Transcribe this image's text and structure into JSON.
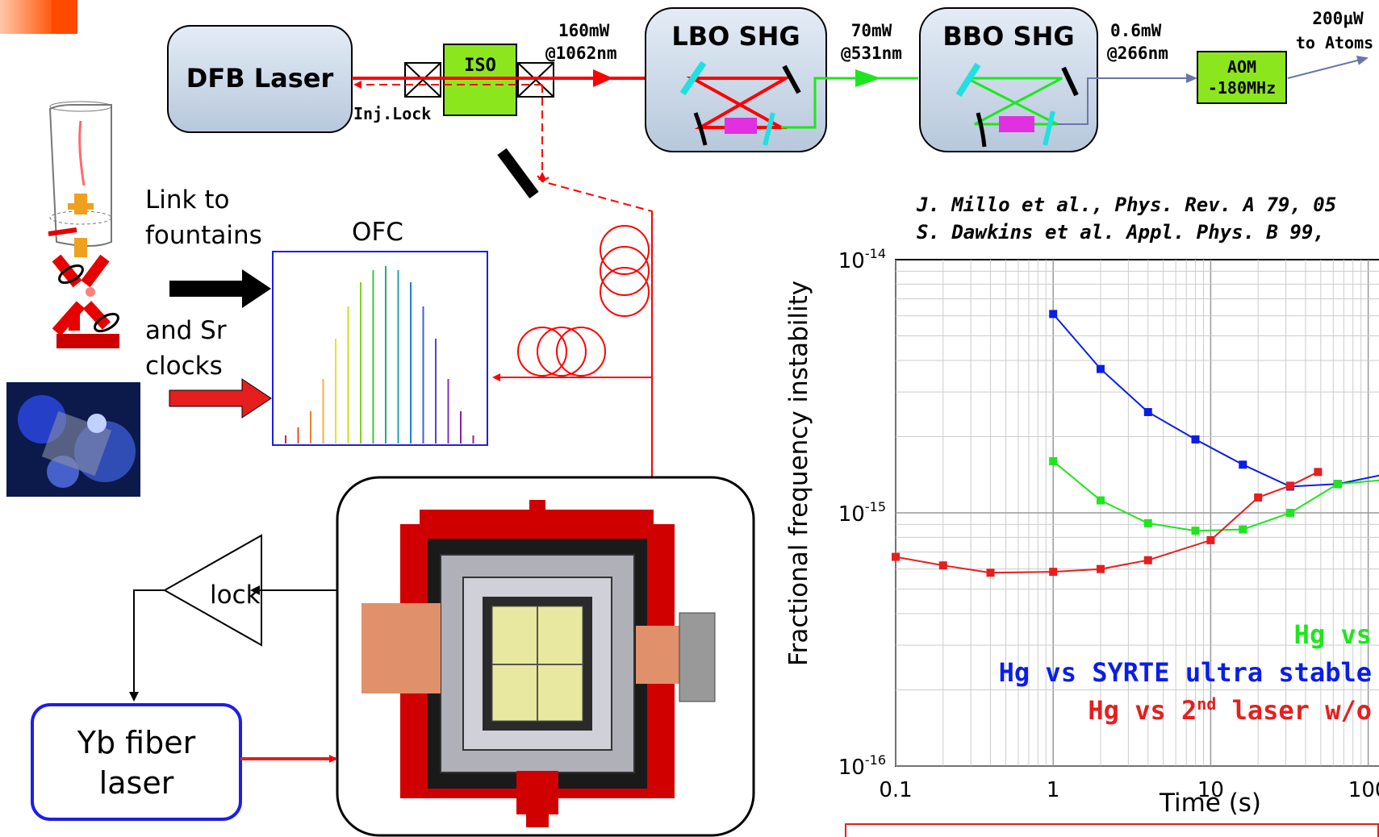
{
  "diagram": {
    "laser": "DFB Laser",
    "iso": "ISO",
    "inj_lock": "Inj.Lock",
    "power_1062": "160mW",
    "wl_1062": "@1062nm",
    "lbo": "LBO SHG",
    "power_531": "70mW",
    "wl_531": "@531nm",
    "bbo": "BBO SHG",
    "power_266": "0.6mW",
    "wl_266": "@266nm",
    "aom_1": "AOM",
    "aom_2": "-180MHz",
    "atoms_power": "200µW",
    "atoms_label": "to Atoms",
    "link_1": "Link to",
    "link_2": "fountains",
    "ofc": "OFC",
    "sr_1": "and Sr",
    "sr_2": "clocks",
    "lock": "lock",
    "yb_1": "Yb fiber",
    "yb_2": "laser"
  },
  "references": {
    "ref1": "J. Millo et al., Phys. Rev. A 79, 05",
    "ref2": "S. Dawkins et al. Appl. Phys. B 99,"
  },
  "chart_data": {
    "type": "line",
    "xscale": "log",
    "yscale": "log",
    "xlabel": "Time (s)",
    "ylabel": "Fractional frequency instability",
    "xlim": [
      0.1,
      150
    ],
    "ylim": [
      1e-16,
      1e-14
    ],
    "x_ticks": [
      "0.1",
      "1",
      "10",
      "100"
    ],
    "y_ticks": [
      "10-16",
      "10-15",
      "10-14"
    ],
    "grid": true,
    "series": [
      {
        "color": "#0a1ee6",
        "x": [
          1,
          2,
          4,
          8,
          16,
          32,
          64,
          128
        ],
        "y": [
          6.1e-15,
          3.7e-15,
          2.5e-15,
          1.95e-15,
          1.55e-15,
          1.27e-15,
          1.3e-15,
          1.42e-15
        ]
      },
      {
        "color": "#1ee61e",
        "x": [
          1,
          2,
          4,
          8,
          16,
          32,
          64,
          128
        ],
        "y": [
          1.6e-15,
          1.12e-15,
          9.1e-16,
          8.5e-16,
          8.6e-16,
          1e-15,
          1.3e-15,
          1.35e-15
        ]
      },
      {
        "color": "#e61e1e",
        "x": [
          0.1,
          0.2,
          0.4,
          1,
          2,
          4,
          10,
          20,
          32,
          48
        ],
        "y": [
          6.7e-16,
          6.2e-16,
          5.8e-16,
          5.85e-16,
          6e-16,
          6.5e-16,
          7.8e-16,
          1.15e-15,
          1.28e-15,
          1.45e-15
        ]
      }
    ],
    "legend": [
      {
        "text": "Hg vs",
        "color": "#1ee61e"
      },
      {
        "text": "Hg vs SYRTE ultra stable",
        "color": "#0a1ee6"
      },
      {
        "text": "Hg vs 2nd laser w/o",
        "color": "#e61e1e"
      }
    ]
  }
}
